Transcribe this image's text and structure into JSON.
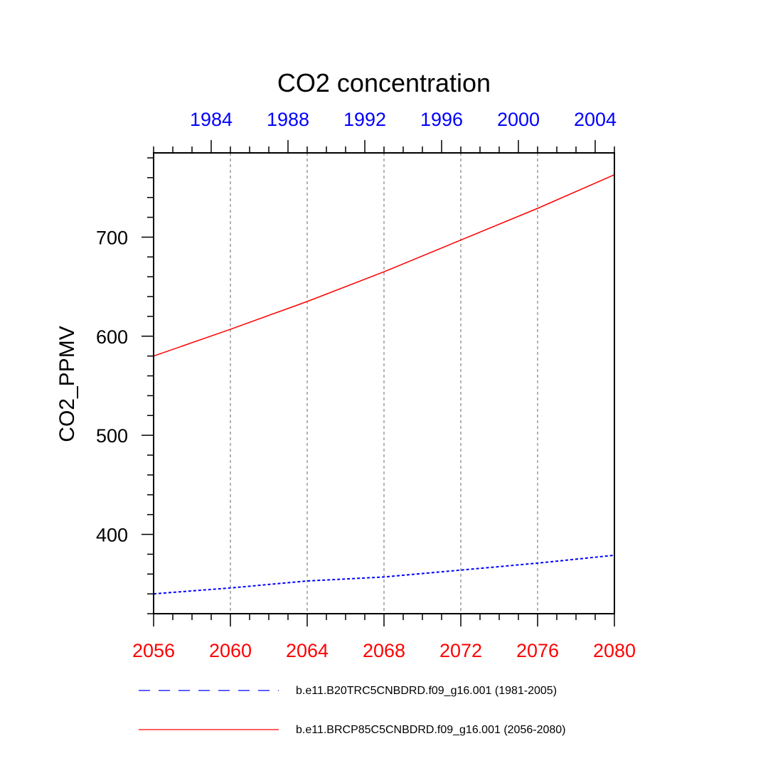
{
  "chart_data": {
    "type": "line",
    "title": "CO2 concentration",
    "ylabel": "CO2_PPMV",
    "xlabel": "",
    "ylim": [
      320,
      785
    ],
    "y_ticks": [
      400,
      500,
      600,
      700
    ],
    "y_minor_step": 20,
    "x_bottom": {
      "range": [
        2056,
        2080
      ],
      "ticks": [
        2056,
        2060,
        2064,
        2068,
        2072,
        2076,
        2080
      ],
      "tick_labels": [
        "2056",
        "2060",
        "2064",
        "2068",
        "2072",
        "2076",
        "2080"
      ],
      "color": "#ff0000"
    },
    "x_top": {
      "range": [
        1981,
        2005
      ],
      "ticks": [
        1984,
        1988,
        1992,
        1996,
        2000,
        2004
      ],
      "tick_labels": [
        "1984",
        "1988",
        "1992",
        "1996",
        "2000",
        "2004"
      ],
      "color": "#0000ff"
    },
    "grid": "vertical-dotted",
    "series": [
      {
        "name": "b.e11.B20TRC5CNBDRD.f09_g16.001 (1981-2005)",
        "axis": "x_top",
        "color": "#0000ff",
        "style": "dashed",
        "x": [
          1981,
          1985,
          1989,
          1993,
          1997,
          2001,
          2005
        ],
        "values": [
          340,
          346,
          353,
          357,
          364,
          371,
          379
        ]
      },
      {
        "name": "b.e11.BRCP85C5CNBDRD.f09_g16.001 (2056-2080)",
        "axis": "x_bottom",
        "color": "#ff0000",
        "style": "solid",
        "x": [
          2056,
          2060,
          2064,
          2068,
          2072,
          2076,
          2080
        ],
        "values": [
          580,
          607,
          635,
          665,
          697,
          729,
          763
        ]
      }
    ],
    "legend": {
      "placement": "bottom",
      "entries": [
        "b.e11.B20TRC5CNBDRD.f09_g16.001 (1981-2005)",
        "b.e11.BRCP85C5CNBDRD.f09_g16.001 (2056-2080)"
      ]
    }
  }
}
